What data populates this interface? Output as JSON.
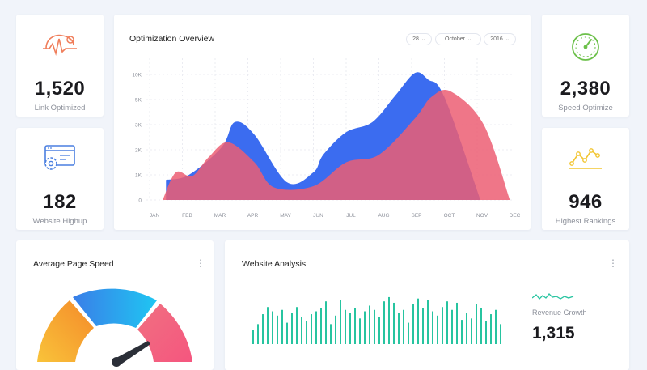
{
  "stats": {
    "link_optimized": {
      "value": "1,520",
      "label": "Link Optimized",
      "icon": "heartbeat-brain-icon",
      "color": "#f07e5b"
    },
    "website_highup": {
      "value": "182",
      "label": "Website Highup",
      "icon": "browser-gear-icon",
      "color": "#4a7fe0"
    },
    "speed_optimize": {
      "value": "2,380",
      "label": "Speed Optimize",
      "icon": "speedometer-icon",
      "color": "#6cc04a"
    },
    "highest_rankings": {
      "value": "946",
      "label": "Highest Rankings",
      "icon": "line-chart-icon",
      "color": "#f2c530"
    }
  },
  "overview": {
    "title": "Optimization Overview",
    "filters": {
      "day": "28",
      "month": "October",
      "year": "2016"
    }
  },
  "chart_data": {
    "type": "area",
    "categories": [
      "JAN",
      "FEB",
      "MAR",
      "APR",
      "MAY",
      "JUN",
      "JUL",
      "AUG",
      "SEP",
      "OCT",
      "NOV",
      "DEC"
    ],
    "yticks": [
      "0",
      "1K",
      "2K",
      "3K",
      "5K",
      "10K"
    ],
    "series": [
      {
        "color": "#3b6cf0",
        "points": [
          [
            0.5,
            800
          ],
          [
            1.2,
            1000
          ],
          [
            2.2,
            2100
          ],
          [
            2.6,
            3200
          ],
          [
            3.2,
            2600
          ],
          [
            4.2,
            700
          ],
          [
            5.0,
            1100
          ],
          [
            5.3,
            1800
          ],
          [
            6.0,
            2700
          ],
          [
            6.8,
            3200
          ],
          [
            7.5,
            5800
          ],
          [
            8.1,
            10600
          ],
          [
            8.5,
            9000
          ],
          [
            9.0,
            5500
          ],
          [
            10.1,
            0
          ]
        ]
      },
      {
        "color": "#ec5e73",
        "points": [
          [
            0.4,
            0
          ],
          [
            0.8,
            1100
          ],
          [
            1.3,
            950
          ],
          [
            1.8,
            1700
          ],
          [
            2.4,
            2300
          ],
          [
            3.2,
            1500
          ],
          [
            3.8,
            500
          ],
          [
            5.0,
            550
          ],
          [
            6.0,
            1500
          ],
          [
            7.0,
            1800
          ],
          [
            8.1,
            3500
          ],
          [
            8.6,
            5500
          ],
          [
            9.2,
            6600
          ],
          [
            10.2,
            3000
          ],
          [
            11.0,
            0
          ]
        ]
      }
    ],
    "ylim": [
      0,
      11000
    ]
  },
  "speed": {
    "title": "Average Page Speed",
    "gauge_colors": [
      "#f6a22a",
      "#2f8ef5",
      "#ef5d82"
    ]
  },
  "analysis": {
    "title": "Website Analysis",
    "bars": [
      20,
      28,
      42,
      52,
      46,
      40,
      48,
      30,
      44,
      52,
      38,
      32,
      42,
      46,
      50,
      60,
      28,
      40,
      62,
      48,
      44,
      50,
      36,
      46,
      54,
      48,
      38,
      60,
      66,
      58,
      44,
      48,
      30,
      56,
      64,
      50,
      62,
      46,
      40,
      52,
      60,
      48,
      58,
      34,
      44,
      36,
      56,
      50,
      32,
      42,
      48,
      28
    ],
    "revenue_label": "Revenue Growth",
    "revenue_value": "1,315",
    "accent": "#27c4a0"
  }
}
